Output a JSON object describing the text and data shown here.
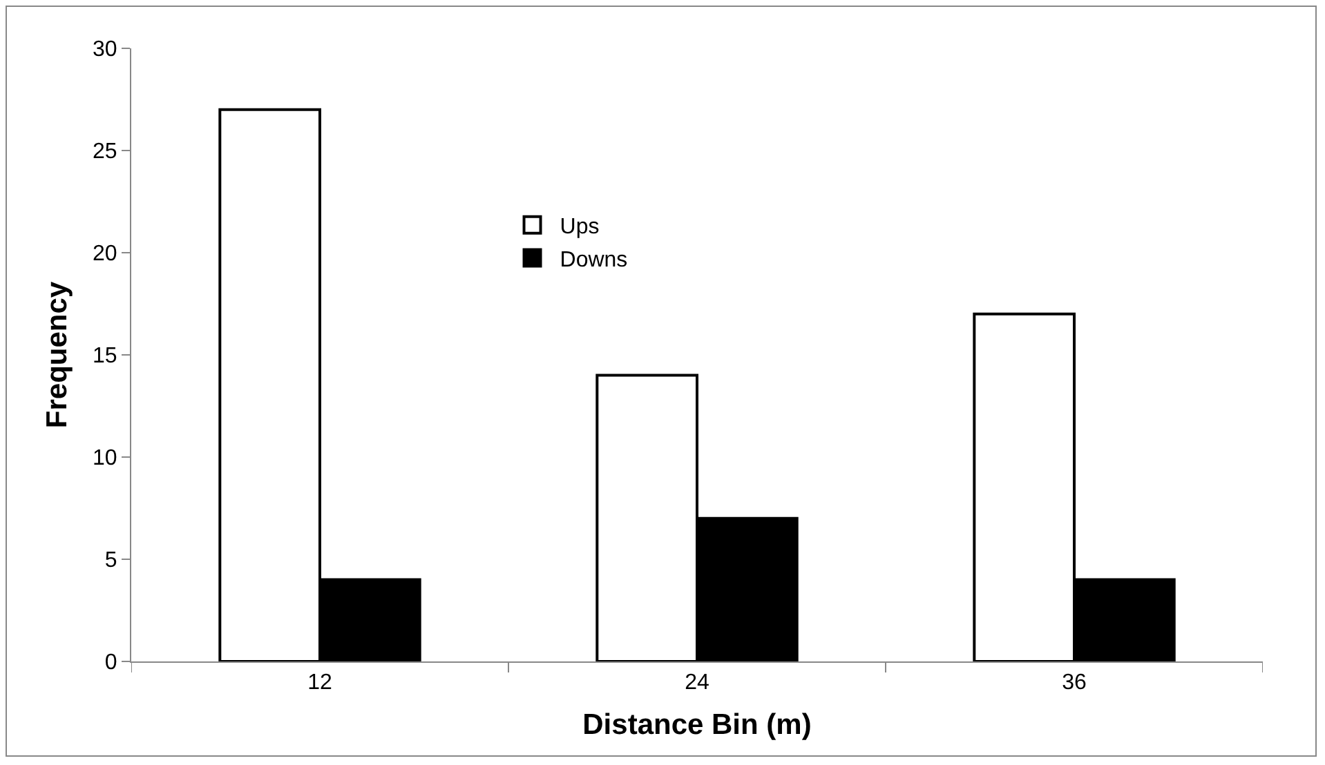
{
  "chart_data": {
    "type": "bar",
    "xlabel": "Distance Bin (m)",
    "ylabel": "Frequency",
    "categories": [
      "12",
      "24",
      "36"
    ],
    "series": [
      {
        "name": "Ups",
        "color": "#ffffff",
        "values": [
          27,
          14,
          17
        ]
      },
      {
        "name": "Downs",
        "color": "#000000",
        "values": [
          4,
          7,
          4
        ]
      }
    ],
    "ylim": [
      0,
      30
    ],
    "yticks": [
      0,
      5,
      10,
      15,
      20,
      25,
      30
    ],
    "grid": false,
    "legend": "top"
  }
}
